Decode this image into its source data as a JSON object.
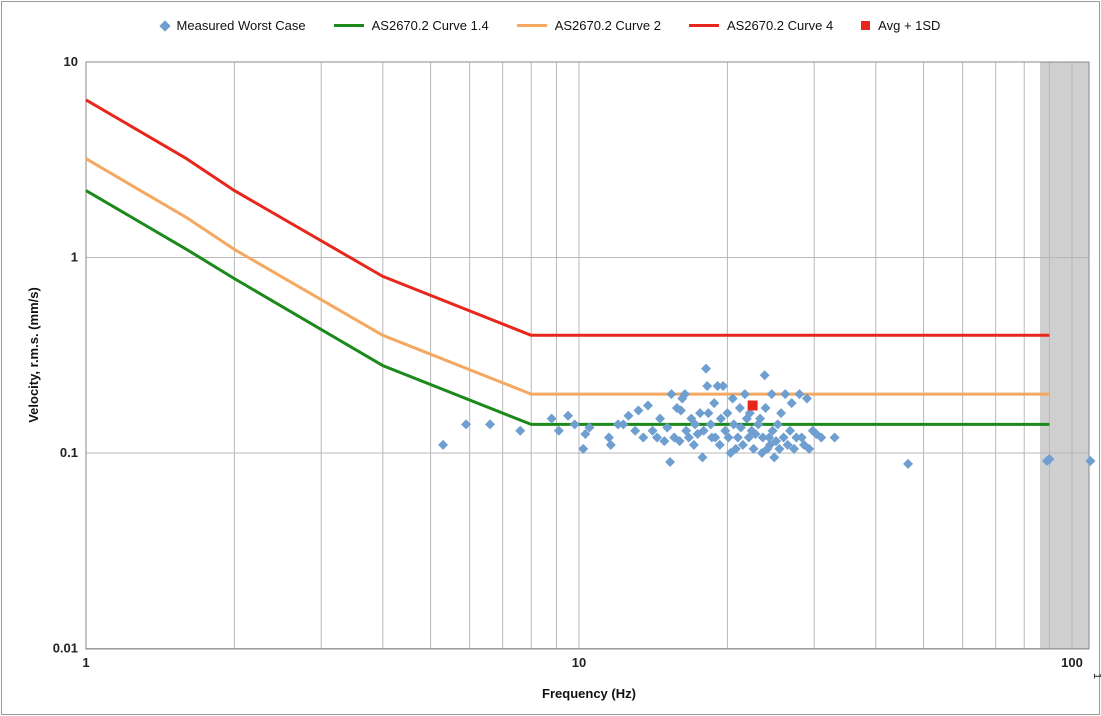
{
  "chart_data": {
    "type": "scatter",
    "title": "",
    "xlabel": "Frequency (Hz)",
    "ylabel": "Velocity, r.m.s. (mm/s)",
    "x_scale": "log",
    "y_scale": "log",
    "xlim": [
      1,
      100
    ],
    "ylim": [
      0.01,
      10
    ],
    "grid": true,
    "legend_position": "top",
    "x_ticks": [
      "1",
      "10",
      "100"
    ],
    "y_ticks": [
      "10",
      "1",
      "0.1",
      "0.01"
    ],
    "x_tick_values": [
      1,
      10,
      100
    ],
    "y_tick_values": [
      10,
      1,
      0.1,
      0.01
    ],
    "edge_tick_label": "1",
    "legend": [
      {
        "label": "Measured Worst Case",
        "marker": "diamond",
        "color": "#6e9fd0"
      },
      {
        "label": "AS2670.2 Curve 1.4",
        "marker": "line",
        "color": "#1b8a1b"
      },
      {
        "label": "AS2670.2 Curve 2",
        "marker": "line",
        "color": "#f4a860"
      },
      {
        "label": "AS2670.2 Curve 4",
        "marker": "line",
        "color": "#e8271c"
      },
      {
        "label": "Avg + 1SD",
        "marker": "square",
        "color": "#e8271c"
      }
    ],
    "lines": [
      {
        "name": "AS2670.2 Curve 4",
        "color": "#e8271c",
        "points": [
          [
            1,
            6.4
          ],
          [
            1.6,
            3.2
          ],
          [
            2,
            2.2
          ],
          [
            4,
            0.8
          ],
          [
            8,
            0.4
          ],
          [
            90,
            0.4
          ]
        ]
      },
      {
        "name": "AS2670.2 Curve 2",
        "color": "#f4a860",
        "points": [
          [
            1,
            3.2
          ],
          [
            1.6,
            1.6
          ],
          [
            2,
            1.1
          ],
          [
            4,
            0.4
          ],
          [
            8,
            0.2
          ],
          [
            90,
            0.2
          ]
        ]
      },
      {
        "name": "AS2670.2 Curve 1.4",
        "color": "#1b8a1b",
        "points": [
          [
            1,
            2.2
          ],
          [
            1.6,
            1.1
          ],
          [
            2,
            0.78
          ],
          [
            4,
            0.28
          ],
          [
            8,
            0.14
          ],
          [
            90,
            0.14
          ]
        ]
      }
    ],
    "scatter": {
      "name": "Measured Worst Case",
      "color": "#6e9fd0",
      "points": [
        [
          5.3,
          0.11
        ],
        [
          5.9,
          0.14
        ],
        [
          6.6,
          0.14
        ],
        [
          7.6,
          0.13
        ],
        [
          8.8,
          0.15
        ],
        [
          9.1,
          0.13
        ],
        [
          9.5,
          0.155
        ],
        [
          9.8,
          0.14
        ],
        [
          10.2,
          0.105
        ],
        [
          10.3,
          0.125
        ],
        [
          10.5,
          0.135
        ],
        [
          11.5,
          0.12
        ],
        [
          11.6,
          0.11
        ],
        [
          12.0,
          0.14
        ],
        [
          12.3,
          0.14
        ],
        [
          12.6,
          0.155
        ],
        [
          13.0,
          0.13
        ],
        [
          13.2,
          0.165
        ],
        [
          13.5,
          0.12
        ],
        [
          13.8,
          0.175
        ],
        [
          14.1,
          0.13
        ],
        [
          14.4,
          0.12
        ],
        [
          14.6,
          0.15
        ],
        [
          14.9,
          0.115
        ],
        [
          15.1,
          0.135
        ],
        [
          15.3,
          0.09
        ],
        [
          15.4,
          0.2
        ],
        [
          15.6,
          0.12
        ],
        [
          15.8,
          0.17
        ],
        [
          16.0,
          0.115
        ],
        [
          16.1,
          0.165
        ],
        [
          16.2,
          0.19
        ],
        [
          16.4,
          0.2
        ],
        [
          16.5,
          0.13
        ],
        [
          16.7,
          0.12
        ],
        [
          16.9,
          0.15
        ],
        [
          17.1,
          0.11
        ],
        [
          17.2,
          0.14
        ],
        [
          17.4,
          0.125
        ],
        [
          17.6,
          0.16
        ],
        [
          17.8,
          0.095
        ],
        [
          17.9,
          0.13
        ],
        [
          18.1,
          0.27
        ],
        [
          18.2,
          0.22
        ],
        [
          18.3,
          0.16
        ],
        [
          18.5,
          0.14
        ],
        [
          18.6,
          0.12
        ],
        [
          18.8,
          0.18
        ],
        [
          18.9,
          0.12
        ],
        [
          19.1,
          0.22
        ],
        [
          19.3,
          0.11
        ],
        [
          19.4,
          0.15
        ],
        [
          19.6,
          0.22
        ],
        [
          19.8,
          0.13
        ],
        [
          20.0,
          0.16
        ],
        [
          20.1,
          0.12
        ],
        [
          20.3,
          0.1
        ],
        [
          20.5,
          0.19
        ],
        [
          20.6,
          0.14
        ],
        [
          20.8,
          0.105
        ],
        [
          21.0,
          0.12
        ],
        [
          21.2,
          0.17
        ],
        [
          21.3,
          0.135
        ],
        [
          21.5,
          0.11
        ],
        [
          21.7,
          0.2
        ],
        [
          21.9,
          0.15
        ],
        [
          22.1,
          0.12
        ],
        [
          22.2,
          0.16
        ],
        [
          22.4,
          0.13
        ],
        [
          22.6,
          0.105
        ],
        [
          22.8,
          0.125
        ],
        [
          23.1,
          0.14
        ],
        [
          23.3,
          0.15
        ],
        [
          23.5,
          0.1
        ],
        [
          23.6,
          0.12
        ],
        [
          23.8,
          0.25
        ],
        [
          23.9,
          0.17
        ],
        [
          24.1,
          0.105
        ],
        [
          24.3,
          0.12
        ],
        [
          24.4,
          0.11
        ],
        [
          24.6,
          0.2
        ],
        [
          24.7,
          0.13
        ],
        [
          24.9,
          0.095
        ],
        [
          25.1,
          0.115
        ],
        [
          25.3,
          0.14
        ],
        [
          25.5,
          0.105
        ],
        [
          25.7,
          0.16
        ],
        [
          26.0,
          0.12
        ],
        [
          26.2,
          0.2
        ],
        [
          26.5,
          0.11
        ],
        [
          26.8,
          0.13
        ],
        [
          27.0,
          0.18
        ],
        [
          27.3,
          0.105
        ],
        [
          27.6,
          0.12
        ],
        [
          28.0,
          0.2
        ],
        [
          28.3,
          0.12
        ],
        [
          28.6,
          0.11
        ],
        [
          29.0,
          0.19
        ],
        [
          29.3,
          0.105
        ],
        [
          29.8,
          0.13
        ],
        [
          30.3,
          0.125
        ],
        [
          31.0,
          0.12
        ],
        [
          33.0,
          0.12
        ],
        [
          46.5,
          0.088
        ],
        [
          89.0,
          0.091
        ],
        [
          90.0,
          0.093
        ],
        [
          109.0,
          0.091
        ]
      ]
    },
    "avg_1sd": {
      "name": "Avg + 1SD",
      "color": "#e8271c",
      "x": 22.5,
      "y": 0.175
    }
  }
}
